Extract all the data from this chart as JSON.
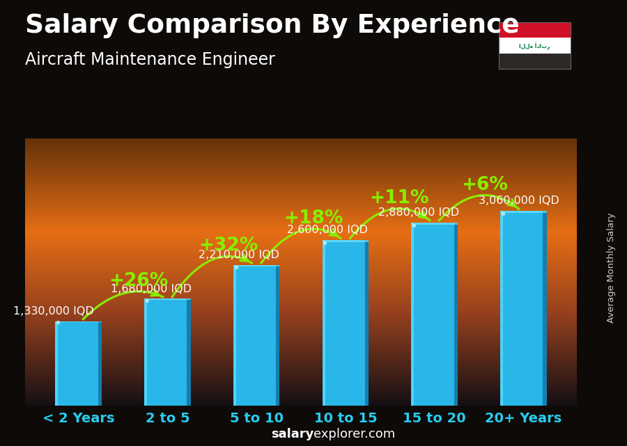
{
  "title": "Salary Comparison By Experience",
  "subtitle": "Aircraft Maintenance Engineer",
  "categories": [
    "< 2 Years",
    "2 to 5",
    "5 to 10",
    "10 to 15",
    "15 to 20",
    "20+ Years"
  ],
  "values": [
    1330000,
    1680000,
    2210000,
    2600000,
    2880000,
    3060000
  ],
  "labels": [
    "1,330,000 IQD",
    "1,680,000 IQD",
    "2,210,000 IQD",
    "2,600,000 IQD",
    "2,880,000 IQD",
    "3,060,000 IQD"
  ],
  "pct_changes": [
    "+26%",
    "+32%",
    "+18%",
    "+11%",
    "+6%"
  ],
  "bar_color_top": "#4dd8f5",
  "bar_color_mid": "#29B6E8",
  "bar_color_bot": "#1a8ab0",
  "background_top": "#1a1a2a",
  "background_mid": "#8B4513",
  "background_bot": "#3a2010",
  "sky_top": "#3a3040",
  "sky_orange": "#cc6020",
  "ground_color": "#4a3010",
  "title_color": "#ffffff",
  "subtitle_color": "#ffffff",
  "label_color": "#ffffff",
  "pct_color": "#88ee00",
  "xlabel_color": "#29ccee",
  "footer_salary_color": "#ffffff",
  "footer_explorer_color": "#ffffff",
  "right_label": "Average Monthly Salary",
  "ylim": [
    0,
    4200000
  ],
  "title_fontsize": 27,
  "subtitle_fontsize": 17,
  "category_fontsize": 14,
  "label_fontsize": 11.5,
  "pct_fontsize": 19,
  "bar_width": 0.52
}
